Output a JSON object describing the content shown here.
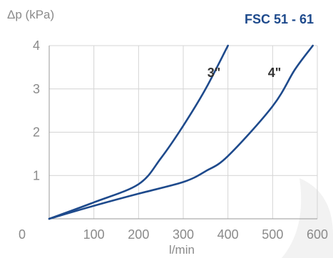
{
  "chart_data": {
    "type": "line",
    "title": "FSC 51 - 61",
    "ylabel": "Δp (kPa)",
    "xlabel": "l/min",
    "xlim": [
      0,
      600
    ],
    "ylim": [
      0,
      4
    ],
    "x_ticks": [
      100,
      200,
      300,
      400,
      500,
      600
    ],
    "y_ticks": [
      1,
      2,
      3,
      4
    ],
    "origin_label": "0",
    "grid": true,
    "series": [
      {
        "name": "3\"",
        "color": "#1e4a8c",
        "points": [
          [
            0,
            0
          ],
          [
            100,
            0.38
          ],
          [
            200,
            0.8
          ],
          [
            250,
            1.4
          ],
          [
            300,
            2.15
          ],
          [
            350,
            3.0
          ],
          [
            400,
            4.0
          ]
        ]
      },
      {
        "name": "4\"",
        "color": "#1e4a8c",
        "points": [
          [
            0,
            0
          ],
          [
            100,
            0.3
          ],
          [
            200,
            0.58
          ],
          [
            300,
            0.85
          ],
          [
            350,
            1.1
          ],
          [
            400,
            1.45
          ],
          [
            500,
            2.6
          ],
          [
            550,
            3.45
          ],
          [
            590,
            4.0
          ]
        ]
      }
    ]
  }
}
